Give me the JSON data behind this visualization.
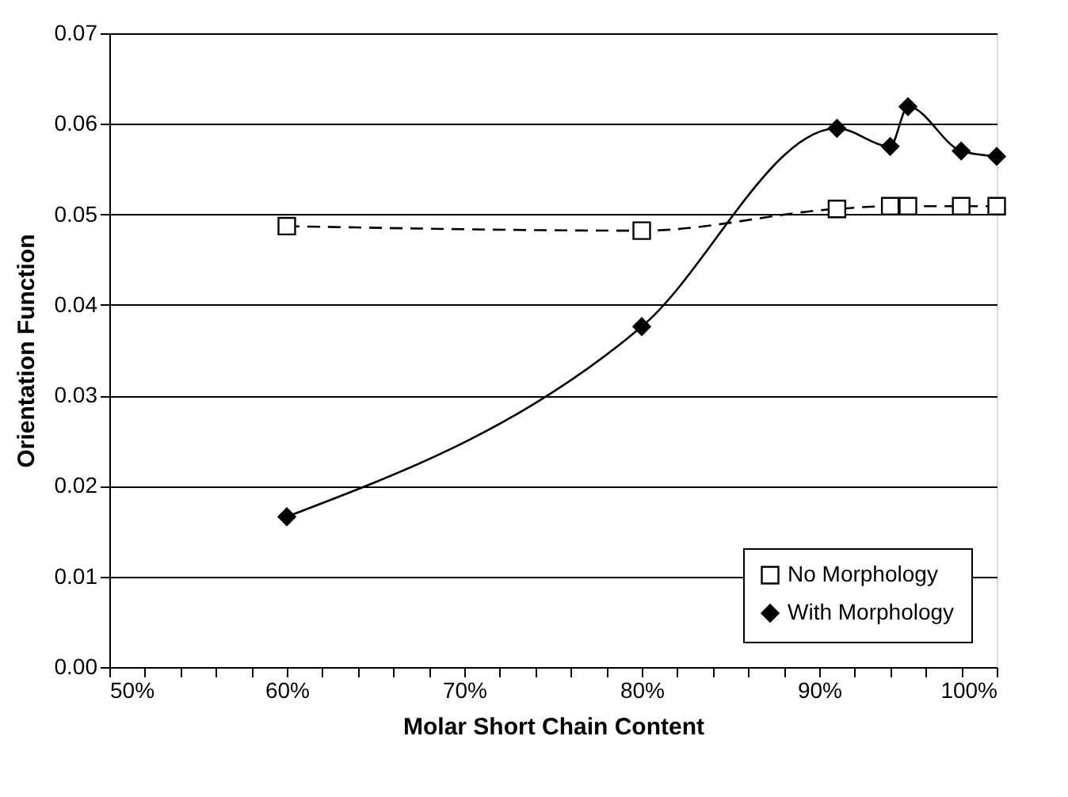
{
  "chart_data": {
    "type": "line",
    "xlabel": "Molar Short Chain Content",
    "ylabel": "Orientation Function",
    "series": [
      {
        "name": "No Morphology",
        "color": "#000000",
        "line_style": "dashed",
        "marker": "square",
        "x": [
          60,
          80,
          91,
          94,
          95,
          98,
          100
        ],
        "values": [
          0.0487,
          0.0482,
          0.0506,
          0.0509,
          0.0509,
          0.0509,
          0.0509
        ]
      },
      {
        "name": "With Morphology",
        "color": "#000000",
        "line_style": "solid",
        "marker": "diamond",
        "x": [
          60,
          80,
          91,
          94,
          95,
          98,
          100
        ],
        "values": [
          0.0166,
          0.0376,
          0.0595,
          0.0575,
          0.0619,
          0.057,
          0.0564
        ]
      }
    ],
    "xlim": [
      50,
      100
    ],
    "xticks": [
      {
        "value": 50,
        "label": "50%"
      },
      {
        "value": 52,
        "label": null
      },
      {
        "value": 54,
        "label": null
      },
      {
        "value": 56,
        "label": null
      },
      {
        "value": 58,
        "label": null
      },
      {
        "value": 60,
        "label": "60%"
      },
      {
        "value": 62,
        "label": null
      },
      {
        "value": 64,
        "label": null
      },
      {
        "value": 66,
        "label": null
      },
      {
        "value": 68,
        "label": null
      },
      {
        "value": 70,
        "label": "70%"
      },
      {
        "value": 72,
        "label": null
      },
      {
        "value": 74,
        "label": null
      },
      {
        "value": 76,
        "label": null
      },
      {
        "value": 78,
        "label": null
      },
      {
        "value": 80,
        "label": "80%"
      },
      {
        "value": 82,
        "label": null
      },
      {
        "value": 84,
        "label": null
      },
      {
        "value": 86,
        "label": null
      },
      {
        "value": 88,
        "label": null
      },
      {
        "value": 90,
        "label": "90%"
      },
      {
        "value": 92,
        "label": null
      },
      {
        "value": 94,
        "label": null
      },
      {
        "value": 96,
        "label": null
      },
      {
        "value": 98,
        "label": null
      },
      {
        "value": 100,
        "label": "100%"
      }
    ],
    "ylim": [
      0,
      0.07
    ],
    "yticks": [
      {
        "value": 0,
        "label": "0.00"
      },
      {
        "value": 0.01,
        "label": "0.01"
      },
      {
        "value": 0.02,
        "label": "0.02"
      },
      {
        "value": 0.03,
        "label": "0.03"
      },
      {
        "value": 0.04,
        "label": "0.04"
      },
      {
        "value": 0.05,
        "label": "0.05"
      },
      {
        "value": 0.06,
        "label": "0.06"
      },
      {
        "value": 0.07,
        "label": "0.07"
      }
    ],
    "grid": "y",
    "legend": "bottom right"
  }
}
